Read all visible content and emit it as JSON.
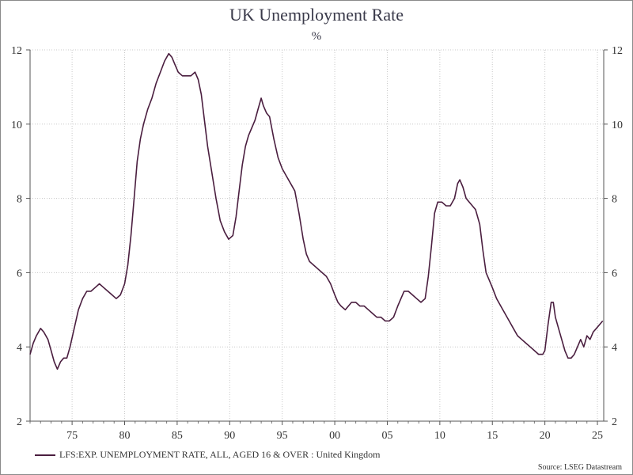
{
  "chart_data": {
    "type": "line",
    "title": "UK Unemployment Rate",
    "subtitle": "%",
    "ylim": [
      2,
      12
    ],
    "xlim": [
      1971.0,
      2025.6
    ],
    "y_ticks": [
      2,
      4,
      6,
      8,
      10,
      12
    ],
    "x_ticks": [
      {
        "year": 1975,
        "label": "75"
      },
      {
        "year": 1980,
        "label": "80"
      },
      {
        "year": 1985,
        "label": "85"
      },
      {
        "year": 1990,
        "label": "90"
      },
      {
        "year": 1995,
        "label": "95"
      },
      {
        "year": 2000,
        "label": "00"
      },
      {
        "year": 2005,
        "label": "05"
      },
      {
        "year": 2010,
        "label": "10"
      },
      {
        "year": 2015,
        "label": "15"
      },
      {
        "year": 2020,
        "label": "20"
      },
      {
        "year": 2025,
        "label": "25"
      }
    ],
    "grid": true,
    "legend_position": "bottom-left",
    "series": [
      {
        "name": "LFS:EXP. UNEMPLOYMENT RATE, ALL, AGED 16 & OVER : United Kingdom",
        "color": "#4a1e3f",
        "x": [
          1971.0,
          1971.3,
          1971.6,
          1972.0,
          1972.3,
          1972.7,
          1973.0,
          1973.3,
          1973.6,
          1973.9,
          1974.2,
          1974.5,
          1974.8,
          1975.2,
          1975.6,
          1976.0,
          1976.4,
          1976.8,
          1977.2,
          1977.6,
          1978.0,
          1978.4,
          1978.8,
          1979.2,
          1979.6,
          1980.0,
          1980.3,
          1980.6,
          1980.9,
          1981.2,
          1981.5,
          1981.8,
          1982.2,
          1982.6,
          1983.0,
          1983.4,
          1983.8,
          1984.2,
          1984.5,
          1984.8,
          1985.1,
          1985.5,
          1985.9,
          1986.3,
          1986.7,
          1987.0,
          1987.3,
          1987.6,
          1987.9,
          1988.3,
          1988.7,
          1989.1,
          1989.5,
          1989.9,
          1990.3,
          1990.6,
          1990.9,
          1991.2,
          1991.5,
          1991.8,
          1992.1,
          1992.4,
          1992.7,
          1993.0,
          1993.2,
          1993.5,
          1993.8,
          1994.2,
          1994.6,
          1995.0,
          1995.4,
          1995.8,
          1996.2,
          1996.6,
          1997.0,
          1997.3,
          1997.6,
          1998.0,
          1998.4,
          1998.8,
          1999.2,
          1999.6,
          2000.0,
          2000.3,
          2000.6,
          2001.0,
          2001.3,
          2001.6,
          2002.0,
          2002.4,
          2002.8,
          2003.2,
          2003.6,
          2004.0,
          2004.4,
          2004.8,
          2005.2,
          2005.6,
          2006.0,
          2006.3,
          2006.6,
          2007.0,
          2007.4,
          2007.8,
          2008.2,
          2008.6,
          2008.9,
          2009.2,
          2009.5,
          2009.8,
          2010.2,
          2010.6,
          2011.0,
          2011.4,
          2011.7,
          2011.9,
          2012.2,
          2012.5,
          2012.8,
          2013.1,
          2013.4,
          2013.8,
          2014.1,
          2014.4,
          2014.7,
          2015.0,
          2015.4,
          2015.8,
          2016.2,
          2016.6,
          2017.0,
          2017.4,
          2017.8,
          2018.2,
          2018.6,
          2019.0,
          2019.4,
          2019.8,
          2020.0,
          2020.3,
          2020.6,
          2020.8,
          2021.0,
          2021.3,
          2021.6,
          2021.9,
          2022.2,
          2022.5,
          2022.8,
          2023.1,
          2023.4,
          2023.7,
          2024.0,
          2024.3,
          2024.6,
          2024.9,
          2025.2,
          2025.5
        ],
        "y": [
          3.8,
          4.1,
          4.3,
          4.5,
          4.4,
          4.2,
          3.9,
          3.6,
          3.4,
          3.6,
          3.7,
          3.7,
          4.0,
          4.5,
          5.0,
          5.3,
          5.5,
          5.5,
          5.6,
          5.7,
          5.6,
          5.5,
          5.4,
          5.3,
          5.4,
          5.7,
          6.2,
          7.0,
          8.0,
          9.0,
          9.6,
          10.0,
          10.4,
          10.7,
          11.1,
          11.4,
          11.7,
          11.9,
          11.8,
          11.6,
          11.4,
          11.3,
          11.3,
          11.3,
          11.4,
          11.2,
          10.8,
          10.1,
          9.4,
          8.7,
          8.0,
          7.4,
          7.1,
          6.9,
          7.0,
          7.5,
          8.2,
          8.9,
          9.4,
          9.7,
          9.9,
          10.1,
          10.4,
          10.7,
          10.5,
          10.3,
          10.2,
          9.6,
          9.1,
          8.8,
          8.6,
          8.4,
          8.2,
          7.6,
          6.9,
          6.5,
          6.3,
          6.2,
          6.1,
          6.0,
          5.9,
          5.7,
          5.4,
          5.2,
          5.1,
          5.0,
          5.1,
          5.2,
          5.2,
          5.1,
          5.1,
          5.0,
          4.9,
          4.8,
          4.8,
          4.7,
          4.7,
          4.8,
          5.1,
          5.3,
          5.5,
          5.5,
          5.4,
          5.3,
          5.2,
          5.3,
          5.9,
          6.7,
          7.6,
          7.9,
          7.9,
          7.8,
          7.8,
          8.0,
          8.4,
          8.5,
          8.3,
          8.0,
          7.9,
          7.8,
          7.7,
          7.3,
          6.6,
          6.0,
          5.8,
          5.6,
          5.3,
          5.1,
          4.9,
          4.7,
          4.5,
          4.3,
          4.2,
          4.1,
          4.0,
          3.9,
          3.8,
          3.8,
          3.9,
          4.6,
          5.2,
          5.2,
          4.8,
          4.5,
          4.2,
          3.9,
          3.7,
          3.7,
          3.8,
          4.0,
          4.2,
          4.0,
          4.3,
          4.2,
          4.4,
          4.5,
          4.6,
          4.7
        ]
      }
    ]
  },
  "source": "Source: LSEG Datastream"
}
